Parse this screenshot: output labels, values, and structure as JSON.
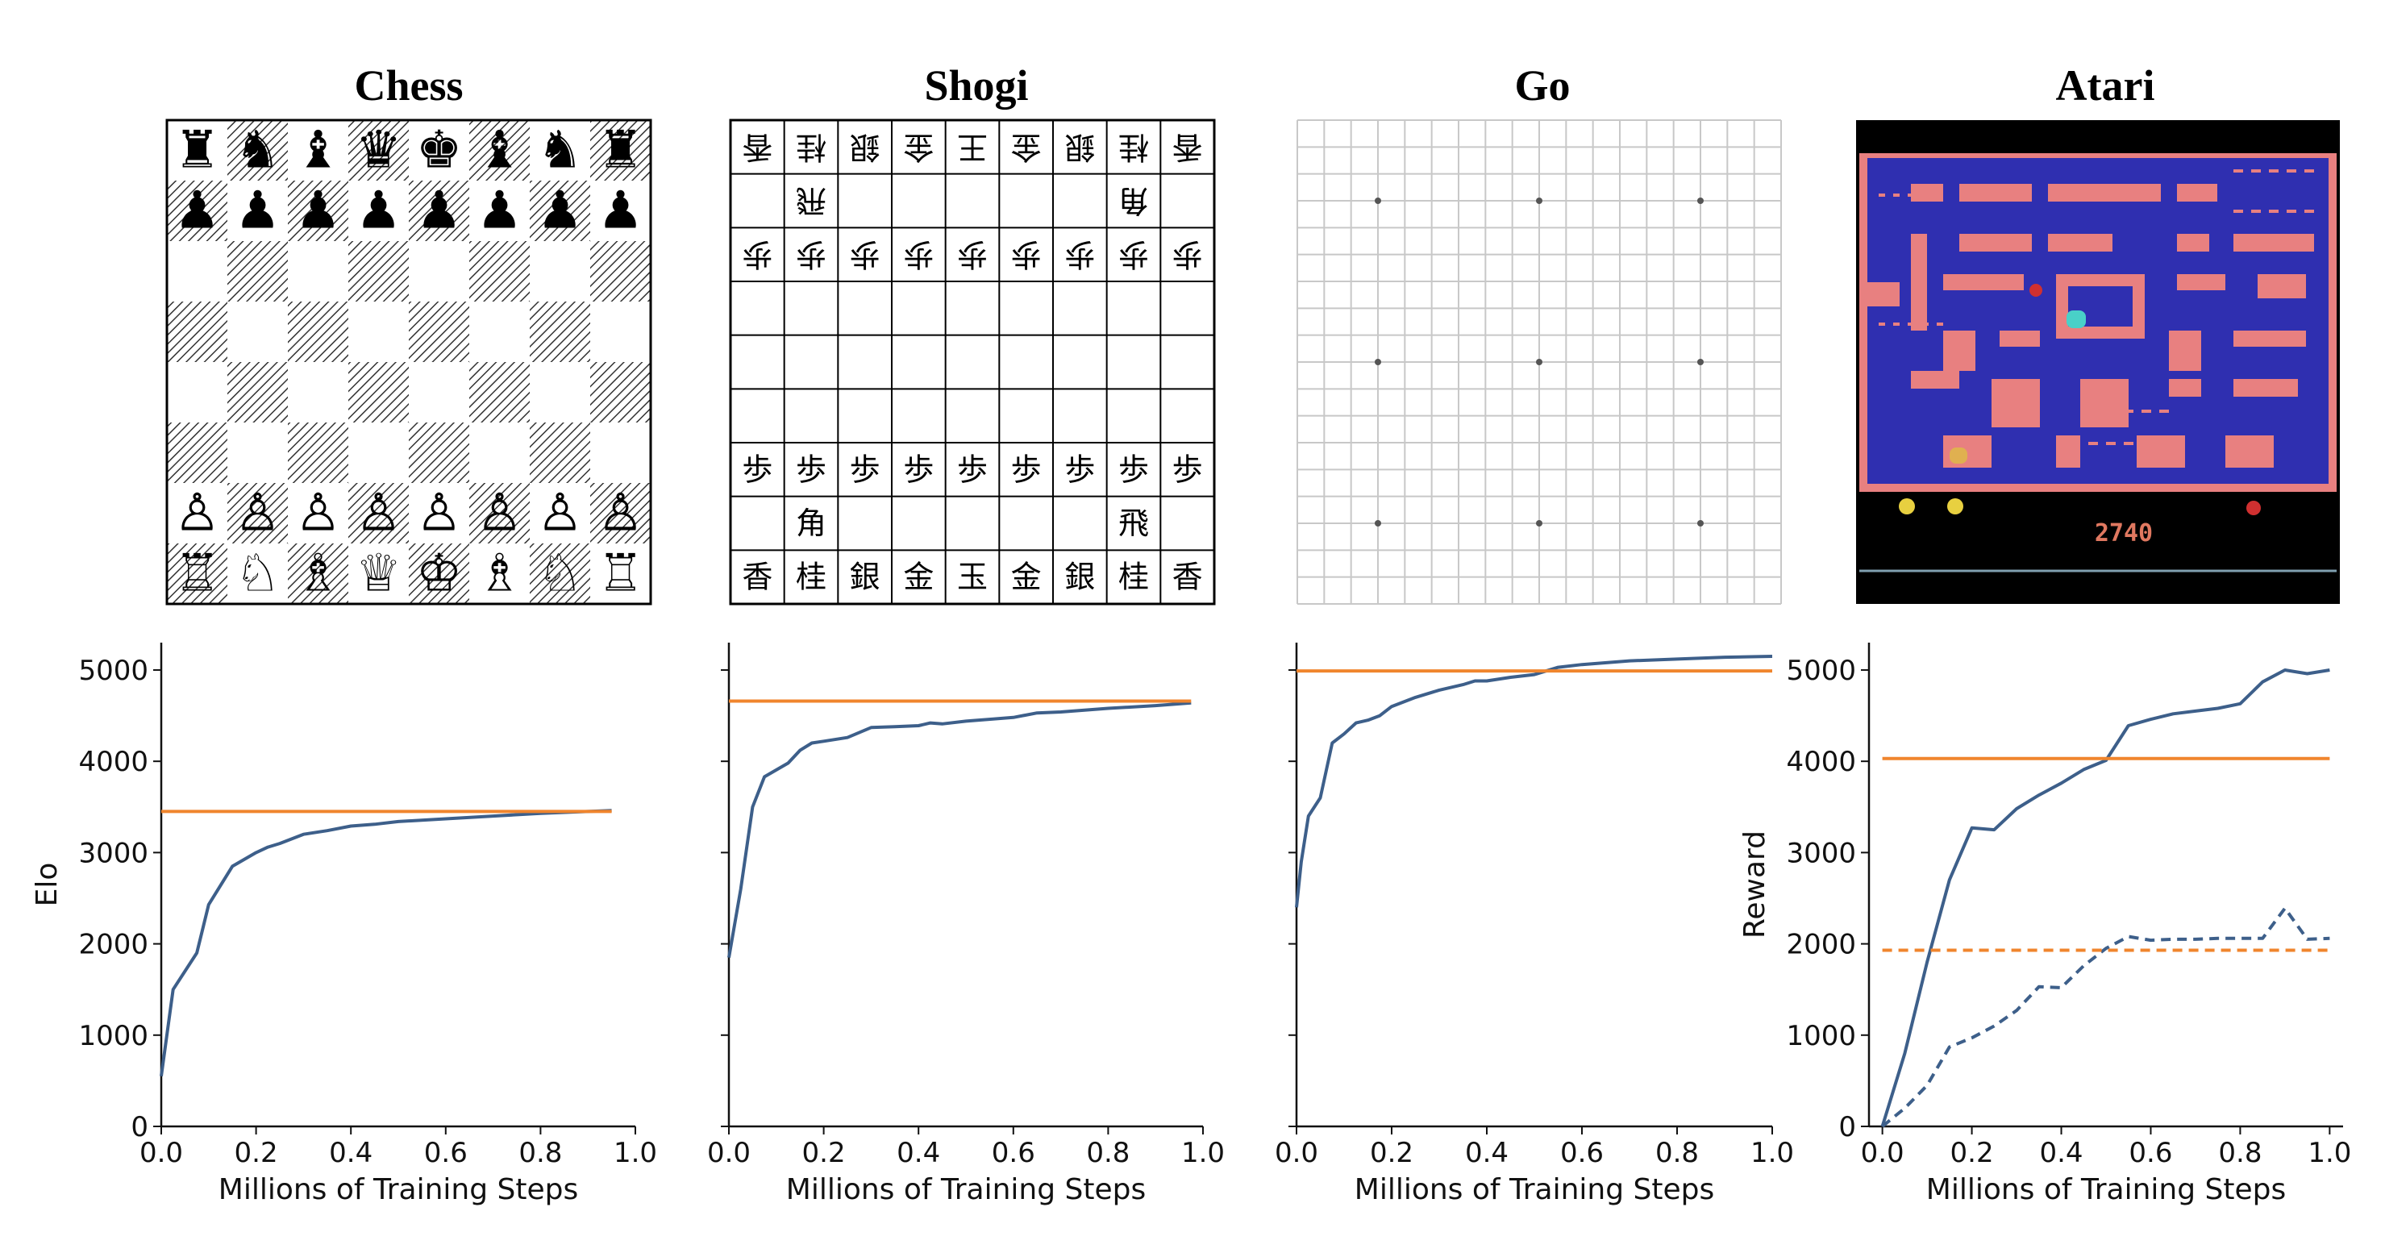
{
  "panels": [
    {
      "title": "Chess"
    },
    {
      "title": "Shogi"
    },
    {
      "title": "Go"
    },
    {
      "title": "Atari"
    }
  ],
  "chess": {
    "rows": [
      [
        "♜",
        "♞",
        "♝",
        "♛",
        "♚",
        "♝",
        "♞",
        "♜"
      ],
      [
        "♟",
        "♟",
        "♟",
        "♟",
        "♟",
        "♟",
        "♟",
        "♟"
      ],
      [
        "",
        "",
        "",
        "",
        "",
        "",
        "",
        ""
      ],
      [
        "",
        "",
        "",
        "",
        "",
        "",
        "",
        ""
      ],
      [
        "",
        "",
        "",
        "",
        "",
        "",
        "",
        ""
      ],
      [
        "",
        "",
        "",
        "",
        "",
        "",
        "",
        ""
      ],
      [
        "♙",
        "♙",
        "♙",
        "♙",
        "♙",
        "♙",
        "♙",
        "♙"
      ],
      [
        "♖",
        "♘",
        "♗",
        "♕",
        "♔",
        "♗",
        "♘",
        "♖"
      ]
    ]
  },
  "shogi": {
    "rows": [
      [
        "香",
        "桂",
        "銀",
        "金",
        "王",
        "金",
        "銀",
        "桂",
        "香"
      ],
      [
        "",
        "飛",
        "",
        "",
        "",
        "",
        "",
        "角",
        ""
      ],
      [
        "歩",
        "歩",
        "歩",
        "歩",
        "歩",
        "歩",
        "歩",
        "歩",
        "歩"
      ],
      [
        "",
        "",
        "",
        "",
        "",
        "",
        "",
        "",
        ""
      ],
      [
        "",
        "",
        "",
        "",
        "",
        "",
        "",
        "",
        ""
      ],
      [
        "",
        "",
        "",
        "",
        "",
        "",
        "",
        "",
        ""
      ],
      [
        "歩",
        "歩",
        "歩",
        "歩",
        "歩",
        "歩",
        "歩",
        "歩",
        "歩"
      ],
      [
        "",
        "角",
        "",
        "",
        "",
        "",
        "",
        "飛",
        ""
      ],
      [
        "香",
        "桂",
        "銀",
        "金",
        "玉",
        "金",
        "銀",
        "桂",
        "香"
      ]
    ],
    "flipped_rows": 3
  },
  "atari": {
    "score": "2740"
  },
  "colors": {
    "blue": "#3d5f8a",
    "orange": "#f0852d",
    "maze_blue": "#2f2fb0",
    "maze_pink": "#e88080",
    "frame": "#000000"
  },
  "chart_data": [
    {
      "type": "line",
      "xlabel": "Millions of Training Steps",
      "ylabel": "Elo",
      "xlim": [
        0,
        1.0
      ],
      "ylim": [
        0,
        5300
      ],
      "xticks": [
        "0.0",
        "0.2",
        "0.4",
        "0.6",
        "0.8",
        "1.0"
      ],
      "yticks": [
        "0",
        "1000",
        "2000",
        "3000",
        "4000",
        "5000"
      ],
      "show_ytick_labels": true,
      "series": [
        {
          "color": "#3d5f8a",
          "style": "solid",
          "x": [
            0,
            0.025,
            0.075,
            0.1,
            0.15,
            0.2,
            0.225,
            0.25,
            0.3,
            0.35,
            0.4,
            0.45,
            0.5,
            0.6,
            0.7,
            0.8,
            0.9,
            0.95
          ],
          "y": [
            550,
            1500,
            1900,
            2430,
            2850,
            3000,
            3060,
            3100,
            3200,
            3240,
            3290,
            3310,
            3340,
            3370,
            3400,
            3430,
            3450,
            3460
          ]
        },
        {
          "color": "#f0852d",
          "style": "solid",
          "x": [
            0,
            0.95
          ],
          "y": [
            3450,
            3450
          ]
        }
      ]
    },
    {
      "type": "line",
      "xlabel": "Millions of Training Steps",
      "ylabel": "",
      "xlim": [
        0,
        1.0
      ],
      "ylim": [
        0,
        5300
      ],
      "xticks": [
        "0.0",
        "0.2",
        "0.4",
        "0.6",
        "0.8",
        "1.0"
      ],
      "yticks": [
        "0",
        "1000",
        "2000",
        "3000",
        "4000",
        "5000"
      ],
      "show_ytick_labels": false,
      "series": [
        {
          "color": "#3d5f8a",
          "style": "solid",
          "x": [
            0,
            0.025,
            0.05,
            0.075,
            0.125,
            0.15,
            0.175,
            0.2,
            0.25,
            0.3,
            0.35,
            0.4,
            0.425,
            0.45,
            0.5,
            0.6,
            0.65,
            0.7,
            0.8,
            0.9,
            0.975
          ],
          "y": [
            1850,
            2600,
            3500,
            3830,
            3980,
            4120,
            4200,
            4220,
            4260,
            4370,
            4380,
            4390,
            4420,
            4410,
            4440,
            4480,
            4530,
            4540,
            4580,
            4610,
            4640
          ]
        },
        {
          "color": "#f0852d",
          "style": "solid",
          "x": [
            0,
            0.975
          ],
          "y": [
            4660,
            4660
          ]
        }
      ]
    },
    {
      "type": "line",
      "xlabel": "Millions of Training Steps",
      "ylabel": "",
      "xlim": [
        0,
        1.0
      ],
      "ylim": [
        0,
        5300
      ],
      "xticks": [
        "0.0",
        "0.2",
        "0.4",
        "0.6",
        "0.8",
        "1.0"
      ],
      "yticks": [
        "0",
        "1000",
        "2000",
        "3000",
        "4000",
        "5000"
      ],
      "show_ytick_labels": false,
      "series": [
        {
          "color": "#3d5f8a",
          "style": "solid",
          "x": [
            0,
            0.01,
            0.025,
            0.05,
            0.075,
            0.1,
            0.125,
            0.15,
            0.175,
            0.2,
            0.25,
            0.3,
            0.35,
            0.375,
            0.4,
            0.45,
            0.5,
            0.55,
            0.6,
            0.7,
            0.8,
            0.9,
            1.0
          ],
          "y": [
            2400,
            2900,
            3400,
            3600,
            4200,
            4300,
            4420,
            4450,
            4500,
            4600,
            4700,
            4780,
            4840,
            4880,
            4880,
            4920,
            4950,
            5030,
            5060,
            5100,
            5120,
            5140,
            5150
          ]
        },
        {
          "color": "#f0852d",
          "style": "solid",
          "x": [
            0,
            1.0
          ],
          "y": [
            4990,
            4990
          ]
        }
      ]
    },
    {
      "type": "line",
      "xlabel": "Millions of Training Steps",
      "ylabel": "Reward",
      "xlim": [
        -0.03,
        1.03
      ],
      "ylim": [
        0,
        5300
      ],
      "xticks": [
        "0.0",
        "0.2",
        "0.4",
        "0.6",
        "0.8",
        "1.0"
      ],
      "yticks": [
        "0",
        "1000",
        "2000",
        "3000",
        "4000",
        "5000"
      ],
      "show_ytick_labels": true,
      "series": [
        {
          "color": "#3d5f8a",
          "style": "solid",
          "x": [
            0,
            0.05,
            0.1,
            0.15,
            0.2,
            0.25,
            0.3,
            0.35,
            0.4,
            0.45,
            0.5,
            0.55,
            0.6,
            0.65,
            0.7,
            0.75,
            0.8,
            0.85,
            0.9,
            0.95,
            1.0
          ],
          "y": [
            0,
            800,
            1800,
            2700,
            3270,
            3250,
            3480,
            3630,
            3760,
            3910,
            4010,
            4390,
            4460,
            4520,
            4550,
            4580,
            4630,
            4870,
            5000,
            4960,
            5000
          ]
        },
        {
          "color": "#f0852d",
          "style": "solid",
          "x": [
            0,
            1.0
          ],
          "y": [
            4030,
            4030
          ]
        },
        {
          "color": "#3d5f8a",
          "style": "dashed",
          "x": [
            0,
            0.05,
            0.1,
            0.15,
            0.2,
            0.25,
            0.3,
            0.35,
            0.4,
            0.45,
            0.5,
            0.55,
            0.6,
            0.65,
            0.7,
            0.75,
            0.8,
            0.85,
            0.9,
            0.95,
            1.0
          ],
          "y": [
            0,
            200,
            450,
            870,
            970,
            1100,
            1270,
            1530,
            1520,
            1760,
            1950,
            2080,
            2040,
            2050,
            2050,
            2060,
            2060,
            2060,
            2390,
            2050,
            2060
          ]
        },
        {
          "color": "#f0852d",
          "style": "dashed",
          "x": [
            0,
            1.0
          ],
          "y": [
            1930,
            1930
          ]
        }
      ]
    }
  ]
}
